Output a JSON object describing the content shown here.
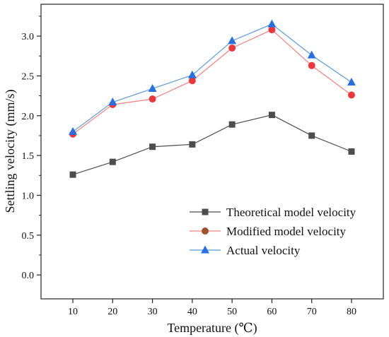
{
  "chart_data": {
    "type": "line",
    "xlabel": "Temperature (℃)",
    "ylabel": "Settling velocity (mm/s)",
    "xlim": [
      2,
      88
    ],
    "ylim": [
      -0.3,
      3.4
    ],
    "x": [
      10,
      20,
      30,
      40,
      50,
      60,
      70,
      80
    ],
    "xticks": [
      "10",
      "20",
      "30",
      "40",
      "50",
      "60",
      "70",
      "80"
    ],
    "yticks": [
      "0.0",
      "0.5",
      "1.0",
      "1.5",
      "2.0",
      "2.5",
      "3.0"
    ],
    "grid": false,
    "legend": "bottom-right",
    "series": [
      {
        "name": "Theoretical model velocity",
        "marker": "square",
        "color": "#4d4d4d",
        "marker_color": "#4d4d4d",
        "values": [
          1.26,
          1.42,
          1.61,
          1.64,
          1.89,
          2.01,
          1.75,
          1.55
        ]
      },
      {
        "name": "Modified model velocity",
        "marker": "circle",
        "color": "#f08080",
        "marker_color": "#e8383d",
        "legend_marker_color": "#a0522d",
        "values": [
          1.77,
          2.14,
          2.21,
          2.44,
          2.85,
          3.08,
          2.63,
          2.26
        ]
      },
      {
        "name": "Actual velocity",
        "marker": "triangle",
        "color": "#5b9bd5",
        "marker_color": "#2a6fdb",
        "values": [
          1.8,
          2.17,
          2.34,
          2.51,
          2.94,
          3.15,
          2.76,
          2.42
        ]
      }
    ]
  }
}
